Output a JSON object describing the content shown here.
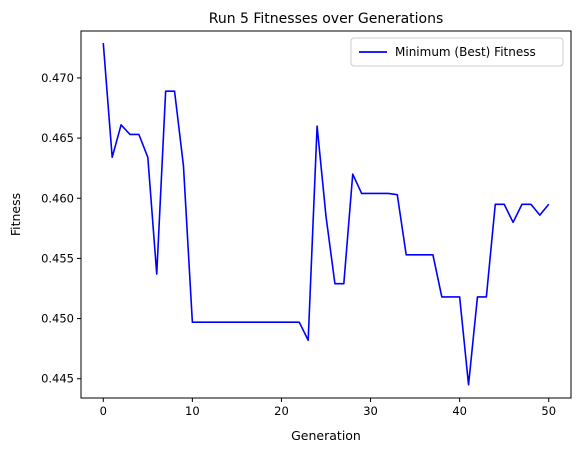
{
  "chart_data": {
    "type": "line",
    "title": "Run 5 Fitnesses over Generations",
    "xlabel": "Generation",
    "ylabel": "Fitness",
    "xlim": [
      -2.5,
      52.5
    ],
    "ylim": [
      0.4434,
      0.4739
    ],
    "xticks": [
      0,
      10,
      20,
      30,
      40,
      50
    ],
    "yticks": [
      0.445,
      0.45,
      0.455,
      0.46,
      0.465,
      0.47
    ],
    "ytick_labels": [
      "0.445",
      "0.450",
      "0.455",
      "0.460",
      "0.465",
      "0.470"
    ],
    "grid": false,
    "legend_position": "top-right",
    "series": [
      {
        "name": "Minimum (Best) Fitness",
        "color": "#0000ff",
        "x": [
          0,
          1,
          2,
          3,
          4,
          5,
          6,
          7,
          8,
          9,
          10,
          11,
          12,
          13,
          14,
          15,
          16,
          17,
          18,
          19,
          20,
          21,
          22,
          23,
          24,
          25,
          26,
          27,
          28,
          29,
          30,
          31,
          32,
          33,
          34,
          35,
          36,
          37,
          38,
          39,
          40,
          41,
          42,
          43,
          44,
          45,
          46,
          47,
          48,
          49,
          50
        ],
        "y": [
          0.4729,
          0.4634,
          0.4661,
          0.4653,
          0.4653,
          0.4634,
          0.4537,
          0.4689,
          0.4689,
          0.4627,
          0.4497,
          0.4497,
          0.4497,
          0.4497,
          0.4497,
          0.4497,
          0.4497,
          0.4497,
          0.4497,
          0.4497,
          0.4497,
          0.4497,
          0.4497,
          0.4482,
          0.466,
          0.4585,
          0.4529,
          0.4529,
          0.462,
          0.4604,
          0.4604,
          0.4604,
          0.4604,
          0.4603,
          0.4553,
          0.4553,
          0.4553,
          0.4553,
          0.4518,
          0.4518,
          0.4518,
          0.4445,
          0.4518,
          0.4518,
          0.4595,
          0.4595,
          0.458,
          0.4595,
          0.4595,
          0.4586,
          0.4595
        ]
      }
    ]
  }
}
